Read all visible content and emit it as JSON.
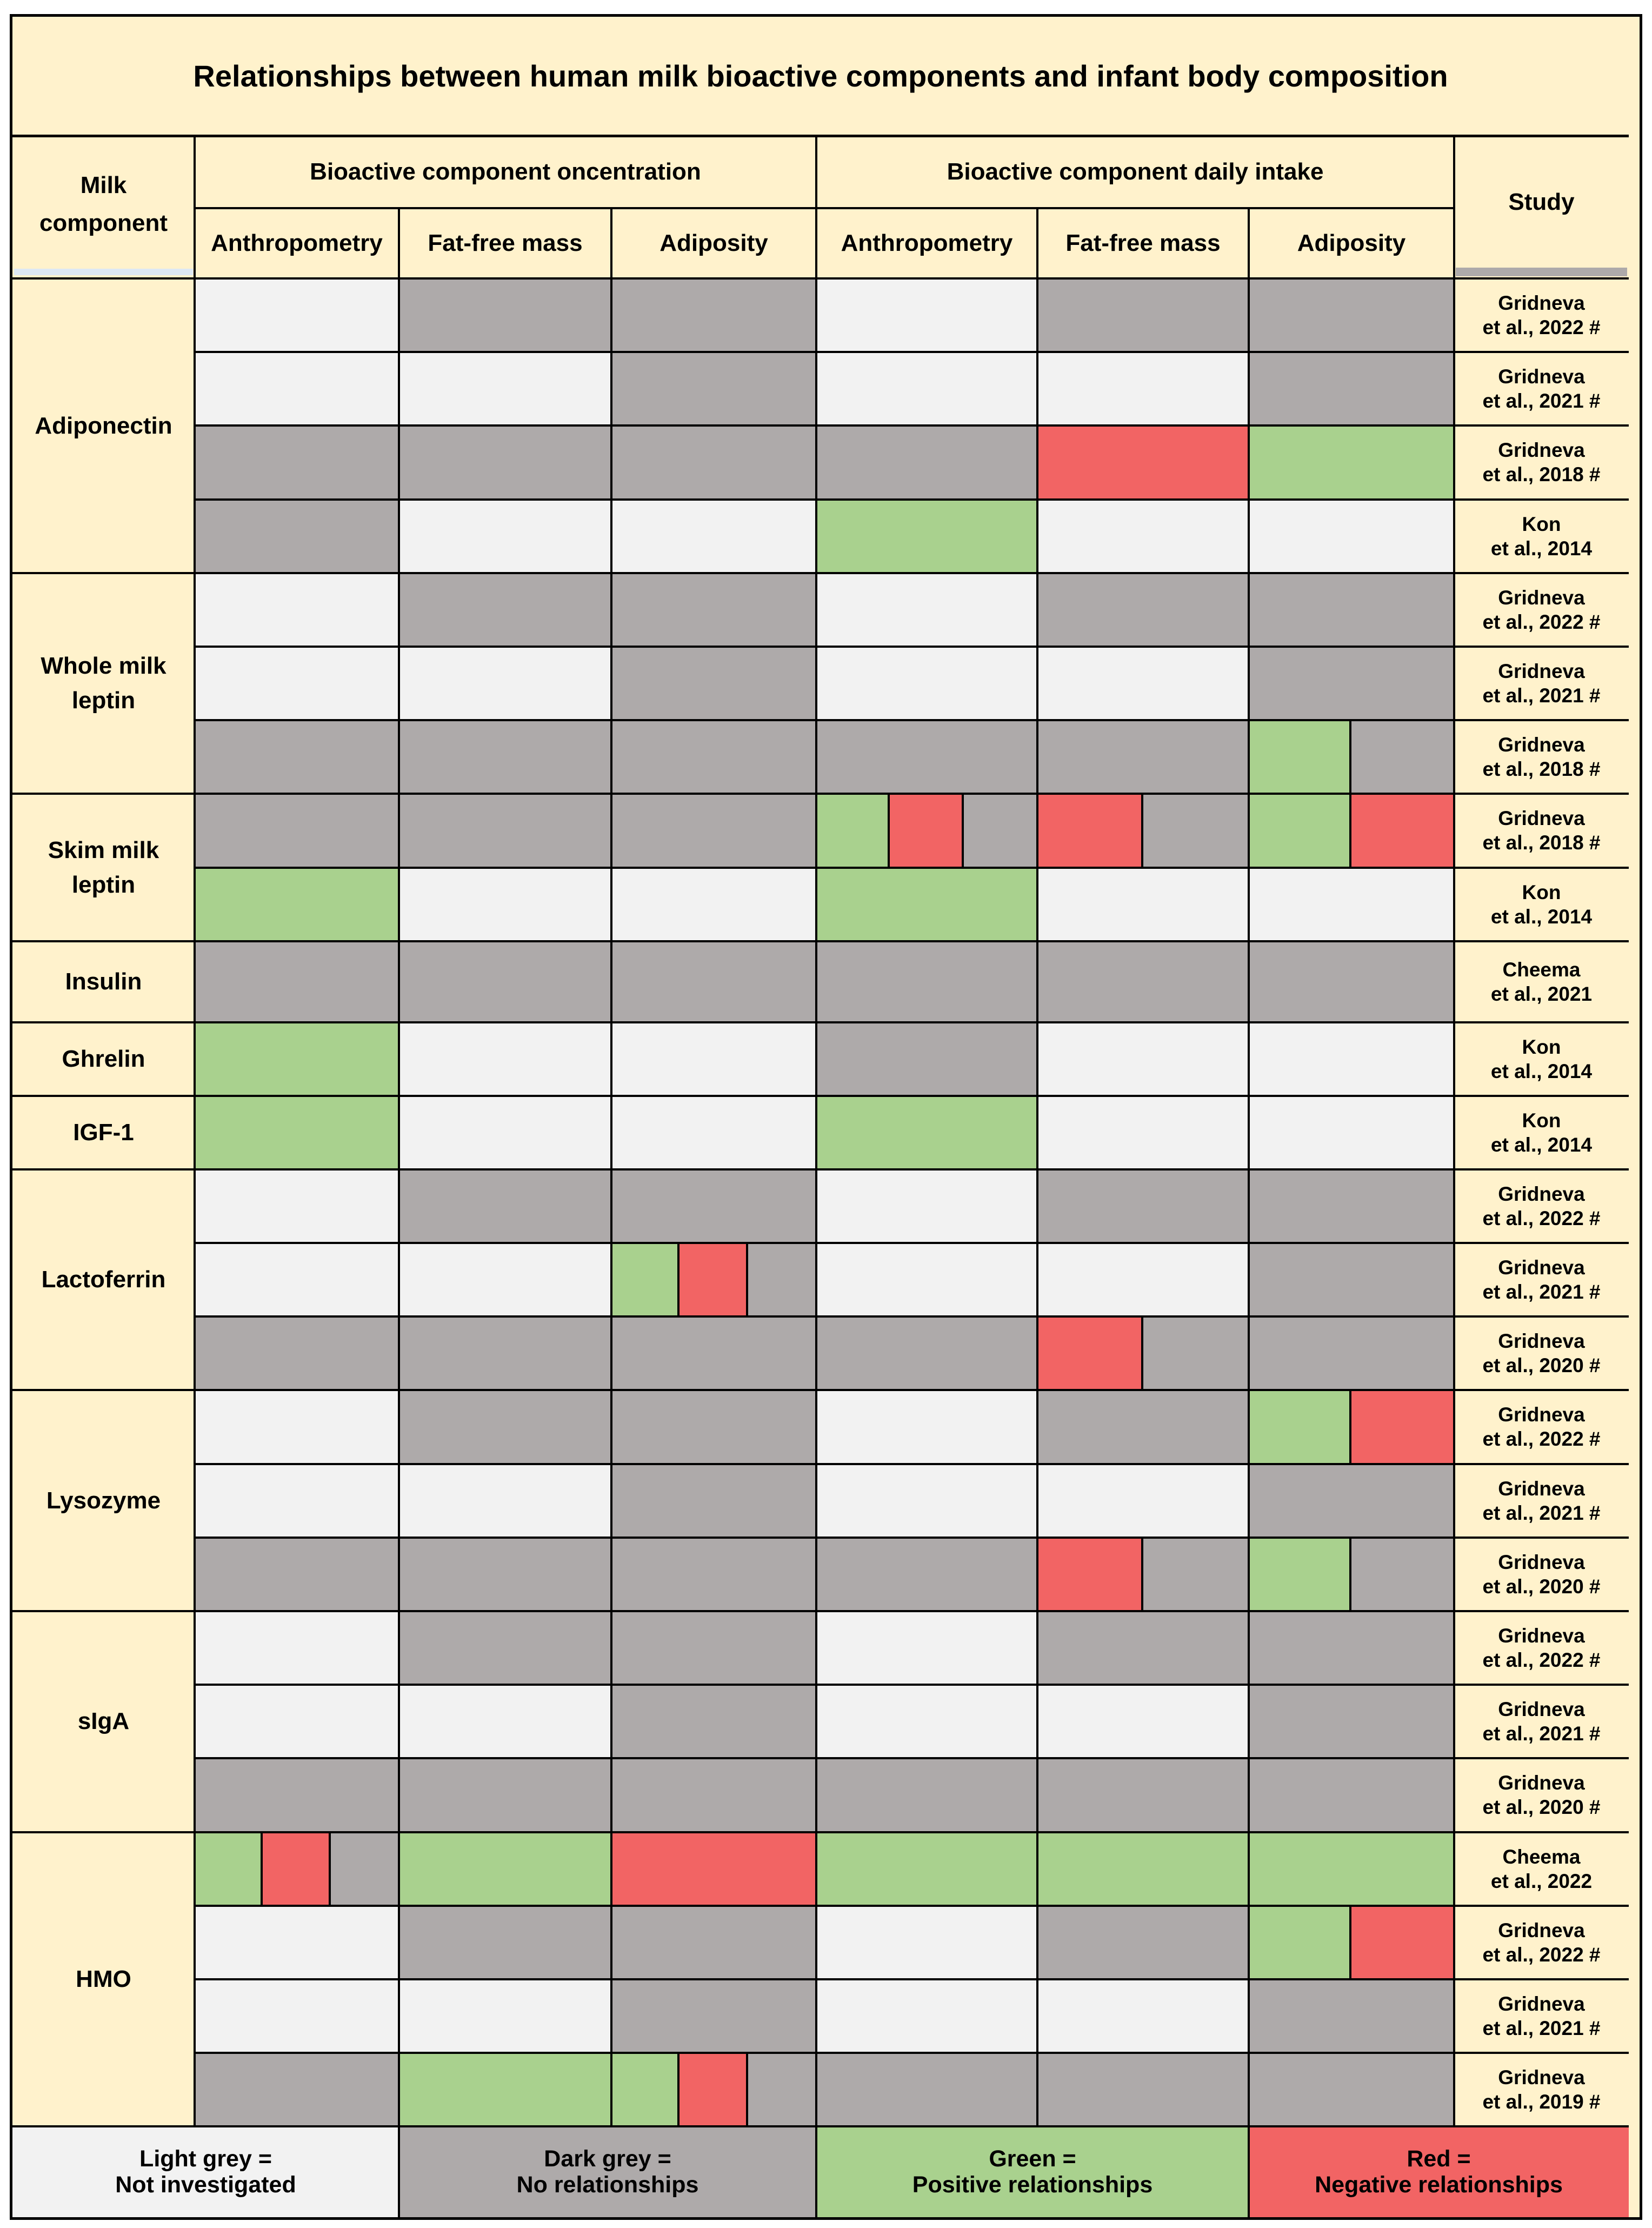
{
  "title": "Relationships between human milk bioactive components and infant body composition",
  "colors": {
    "L": "#f2f2f2",
    "D": "#aeaaaa",
    "G": "#a9d18e",
    "R": "#f26464",
    "header_bg": "#fff2cc"
  },
  "headers": {
    "milk_component": "Milk component",
    "group_concentration": "Bioactive component oncentration",
    "group_intake": "Bioactive component daily intake",
    "study": "Study",
    "sub": [
      "Anthropometry",
      "Fat-free mass",
      "Adiposity",
      "Anthropometry",
      "Fat-free mass",
      "Adiposity"
    ]
  },
  "groups": [
    {
      "name": "Adiponectin",
      "rows": [
        {
          "study": "Gridneva\net al., 2022 #",
          "cells": [
            "L",
            "D",
            "D",
            "L",
            "D",
            "D"
          ]
        },
        {
          "study": "Gridneva\net al., 2021 #",
          "cells": [
            "L",
            "L",
            "D",
            "L",
            "L",
            "D"
          ]
        },
        {
          "study": "Gridneva\net al., 2018 #",
          "cells": [
            "D",
            "D",
            "D",
            "D",
            "R",
            "G"
          ]
        },
        {
          "study": "Kon\net al., 2014",
          "cells": [
            "D",
            "L",
            "L",
            "G",
            "L",
            "L"
          ]
        }
      ]
    },
    {
      "name": "Whole milk leptin",
      "rows": [
        {
          "study": "Gridneva\net al., 2022 #",
          "cells": [
            "L",
            "D",
            "D",
            "L",
            "D",
            "D"
          ]
        },
        {
          "study": "Gridneva\net al., 2021 #",
          "cells": [
            "L",
            "L",
            "D",
            "L",
            "L",
            "D"
          ]
        },
        {
          "study": "Gridneva\net al., 2018 #",
          "cells": [
            "D",
            "D",
            "D",
            "D",
            "D",
            "G/D"
          ]
        }
      ]
    },
    {
      "name": "Skim milk leptin",
      "rows": [
        {
          "study": "Gridneva\net al., 2018 #",
          "cells": [
            "D",
            "D",
            "D",
            "G/R/D",
            "R/D",
            "G/R"
          ]
        },
        {
          "study": "Kon\net al., 2014",
          "cells": [
            "G",
            "L",
            "L",
            "G",
            "L",
            "L"
          ]
        }
      ]
    },
    {
      "name": "Insulin",
      "rows": [
        {
          "study": "Cheema\net al., 2021",
          "cells": [
            "D",
            "D",
            "D",
            "D",
            "D",
            "D"
          ]
        }
      ]
    },
    {
      "name": "Ghrelin",
      "rows": [
        {
          "study": "Kon\net al., 2014",
          "cells": [
            "G",
            "L",
            "L",
            "D",
            "L",
            "L"
          ]
        }
      ]
    },
    {
      "name": "IGF-1",
      "rows": [
        {
          "study": "Kon\net al., 2014",
          "cells": [
            "G",
            "L",
            "L",
            "G",
            "L",
            "L"
          ]
        }
      ]
    },
    {
      "name": "Lactoferrin",
      "rows": [
        {
          "study": "Gridneva\net al., 2022 #",
          "cells": [
            "L",
            "D",
            "D",
            "L",
            "D",
            "D"
          ]
        },
        {
          "study": "Gridneva\net al., 2021 #",
          "cells": [
            "L",
            "L",
            "G/R/D",
            "L",
            "L",
            "D"
          ]
        },
        {
          "study": "Gridneva\net al., 2020 #",
          "cells": [
            "D",
            "D",
            "D",
            "D",
            "R/D",
            "D"
          ]
        }
      ]
    },
    {
      "name": "Lysozyme",
      "rows": [
        {
          "study": "Gridneva\net al., 2022 #",
          "cells": [
            "L",
            "D",
            "D",
            "L",
            "D",
            "G/R"
          ]
        },
        {
          "study": "Gridneva\net al., 2021 #",
          "cells": [
            "L",
            "L",
            "D",
            "L",
            "L",
            "D"
          ]
        },
        {
          "study": "Gridneva\net al., 2020 #",
          "cells": [
            "D",
            "D",
            "D",
            "D",
            "R/D",
            "G/D"
          ]
        }
      ]
    },
    {
      "name": "sIgA",
      "rows": [
        {
          "study": "Gridneva\net al., 2022 #",
          "cells": [
            "L",
            "D",
            "D",
            "L",
            "D",
            "D"
          ]
        },
        {
          "study": "Gridneva\net al., 2021 #",
          "cells": [
            "L",
            "L",
            "D",
            "L",
            "L",
            "D"
          ]
        },
        {
          "study": "Gridneva\net al., 2020 #",
          "cells": [
            "D",
            "D",
            "D",
            "D",
            "D",
            "D"
          ]
        }
      ]
    },
    {
      "name": "HMO",
      "rows": [
        {
          "study": "Cheema\net al., 2022",
          "cells": [
            "G/R/D",
            "G",
            "R",
            "G",
            "G",
            "G"
          ]
        },
        {
          "study": "Gridneva\net al., 2022 #",
          "cells": [
            "L",
            "D",
            "D",
            "L",
            "D",
            "G/R"
          ]
        },
        {
          "study": "Gridneva\net al., 2021 #",
          "cells": [
            "L",
            "L",
            "D",
            "L",
            "L",
            "D"
          ]
        },
        {
          "study": "Gridneva\net al., 2019 #",
          "cells": [
            "D",
            "G",
            "G/R/D",
            "D",
            "D",
            "D"
          ]
        }
      ]
    }
  ],
  "legend": [
    {
      "label": "Light grey =\nNot investigated",
      "color": "L"
    },
    {
      "label": "Dark grey =\nNo relationships",
      "color": "D"
    },
    {
      "label": "Green =\nPositive relationships",
      "color": "G"
    },
    {
      "label": "Red =\nNegative relationships",
      "color": "R"
    }
  ]
}
